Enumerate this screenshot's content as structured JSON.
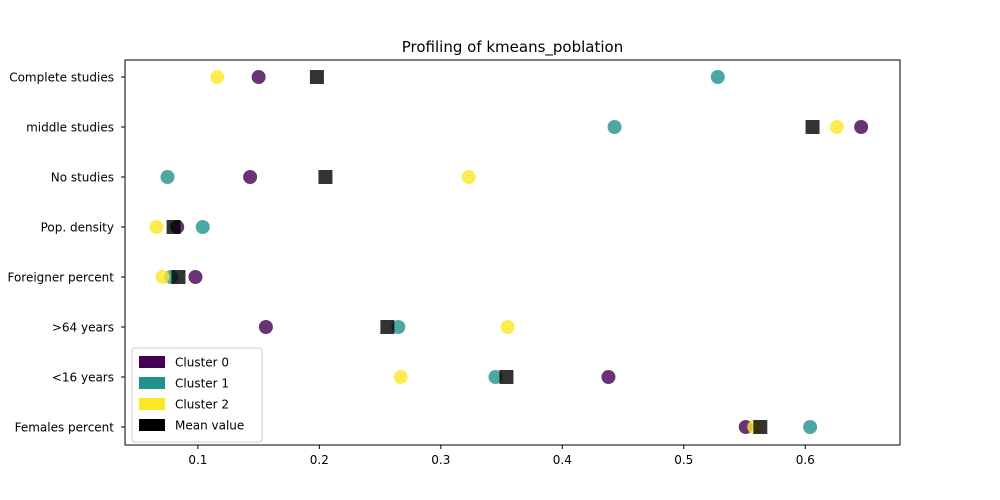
{
  "chart_data": {
    "type": "scatter",
    "title": "Profiling of kmeans_poblation",
    "xlabel": "",
    "ylabel": "",
    "xlim": [
      0.04,
      0.678
    ],
    "x_ticks": [
      "0.1",
      "0.2",
      "0.3",
      "0.4",
      "0.5",
      "0.6"
    ],
    "categories": [
      "Complete studies",
      "middle studies",
      "No studies",
      "Pop. density",
      "Foreigner percent",
      ">64 years",
      "<16 years",
      "Females percent"
    ],
    "grid": false,
    "legend_position": "lower-left",
    "series": [
      {
        "name": "Cluster 0",
        "color": "#440154",
        "marker": "circle",
        "values": [
          0.15,
          0.646,
          0.143,
          0.083,
          0.098,
          0.156,
          0.438,
          0.551
        ]
      },
      {
        "name": "Cluster 1",
        "color": "#21918c",
        "marker": "circle",
        "values": [
          0.528,
          0.443,
          0.075,
          0.104,
          0.078,
          0.265,
          0.345,
          0.604
        ]
      },
      {
        "name": "Cluster 2",
        "color": "#fde725",
        "marker": "circle",
        "values": [
          0.116,
          0.626,
          0.323,
          0.066,
          0.071,
          0.355,
          0.267,
          0.558
        ]
      },
      {
        "name": "Mean value",
        "color": "#000000",
        "marker": "square",
        "values": [
          0.198,
          0.606,
          0.205,
          0.08,
          0.084,
          0.256,
          0.354,
          0.563
        ]
      }
    ]
  }
}
